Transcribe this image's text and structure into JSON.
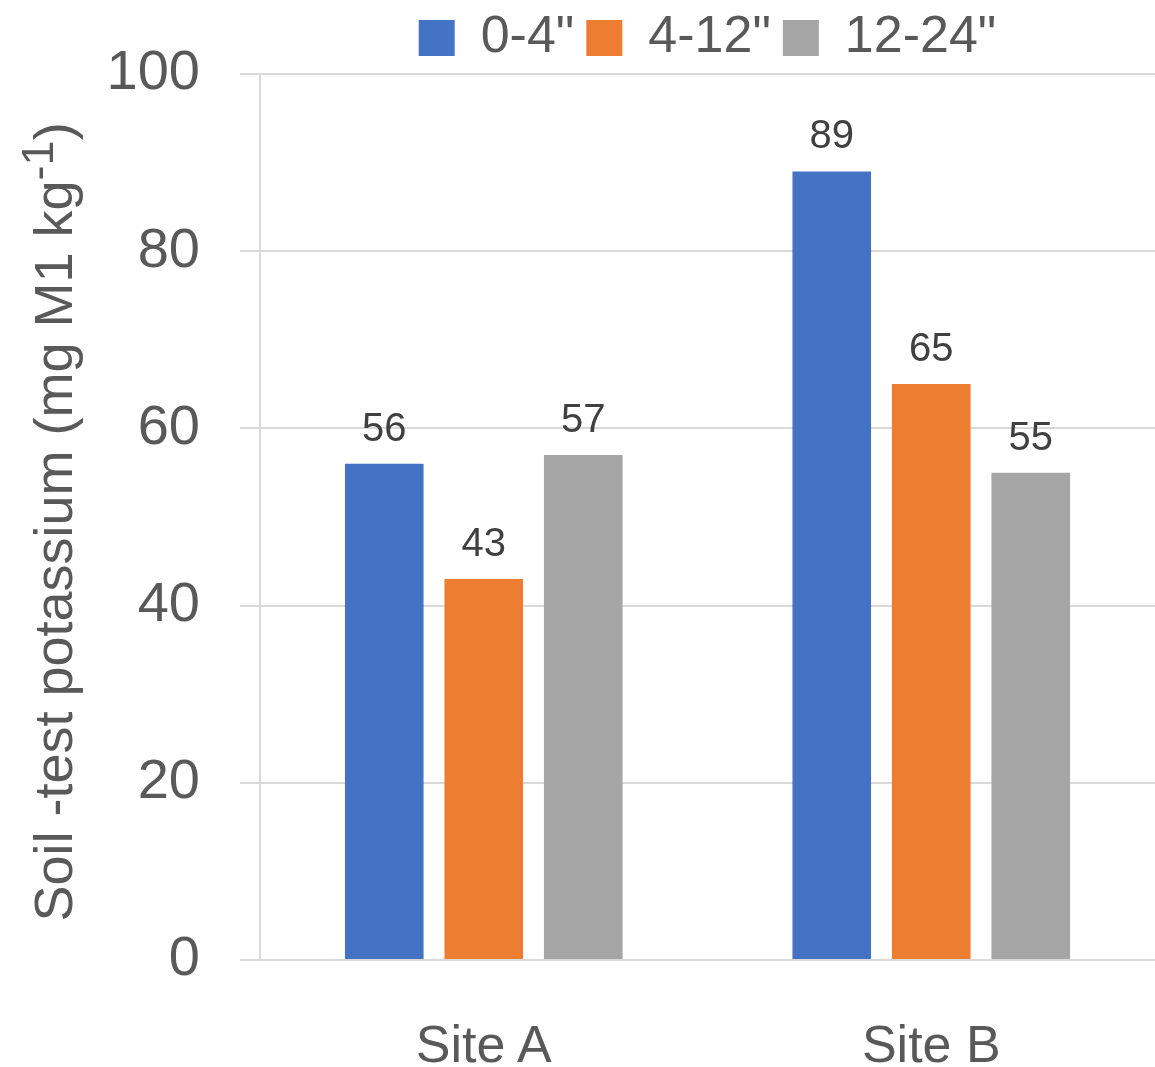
{
  "chart_data": {
    "type": "bar",
    "ylabel": "Soil -test potassium (mg M1 kg$^{-1}$)",
    "categories": [
      "Site A",
      "Site B"
    ],
    "series": [
      {
        "name": "0-4\"",
        "color": "#4472c4",
        "values": [
          56,
          89
        ]
      },
      {
        "name": "4-12\"",
        "color": "#ed7d31",
        "values": [
          43,
          65
        ]
      },
      {
        "name": "12-24\"",
        "color": "#a5a5a5",
        "values": [
          57,
          55
        ]
      }
    ],
    "ylim": [
      0,
      100
    ],
    "yticks": [
      0,
      20,
      40,
      60,
      80,
      100
    ],
    "grid": "y",
    "legend": "top",
    "data_labels": true
  }
}
